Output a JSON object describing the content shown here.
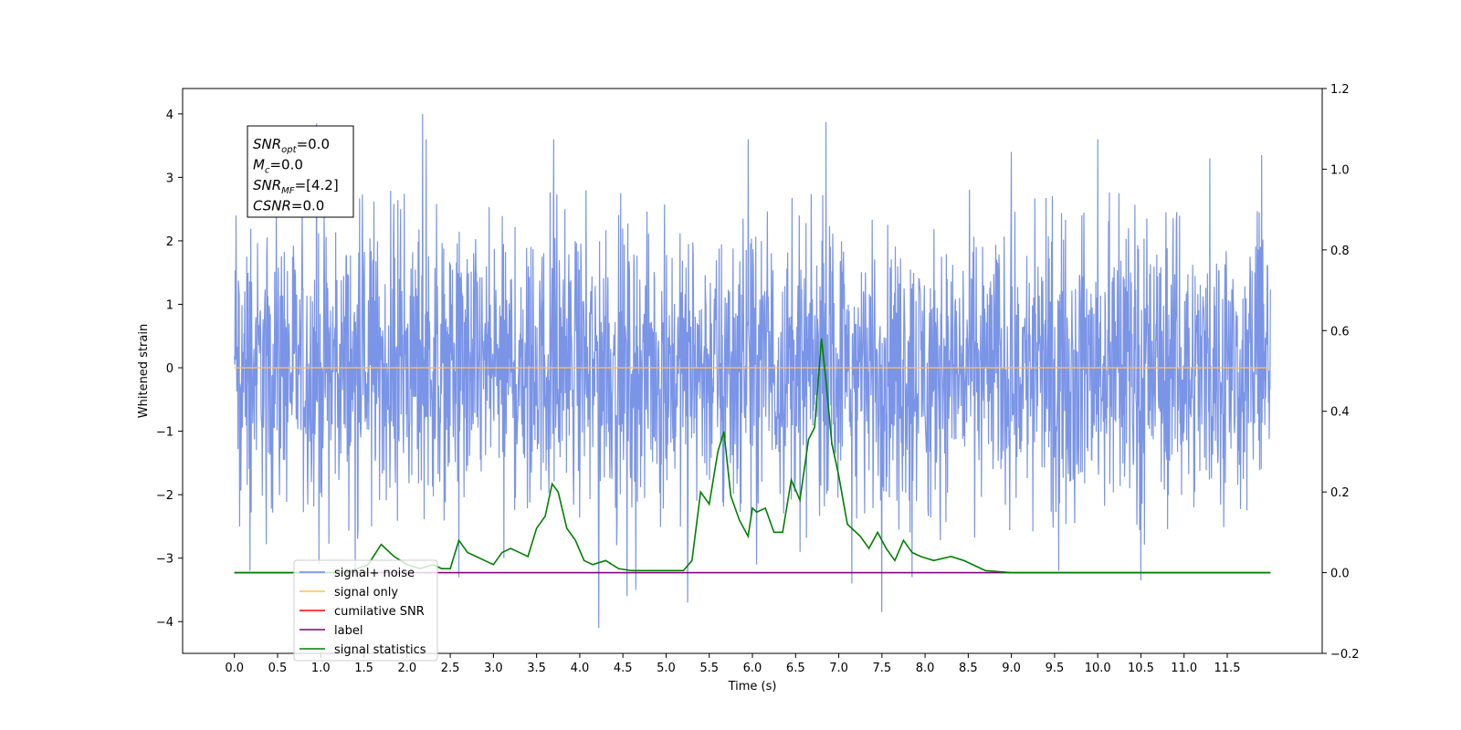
{
  "chart_data": {
    "type": "line",
    "xlabel": "Time (s)",
    "ylabel": "Whitened strain",
    "xlim": [
      -0.6,
      12.6
    ],
    "ylim": [
      -4.5,
      4.4
    ],
    "ylim_right": [
      -0.2,
      1.2
    ],
    "x_ticks": [
      0.0,
      0.5,
      1.0,
      1.5,
      2.0,
      2.5,
      3.0,
      3.5,
      4.0,
      4.5,
      5.0,
      5.5,
      6.0,
      6.5,
      7.0,
      7.5,
      8.0,
      8.5,
      9.0,
      9.5,
      10.0,
      10.5,
      11.0,
      11.5
    ],
    "x_tick_labels": [
      "0.0",
      "0.5",
      "1.0",
      "1.5",
      "2.0",
      "2.5",
      "3.0",
      "3.5",
      "4.0",
      "4.5",
      "5.0",
      "5.5",
      "6.0",
      "6.5",
      "7.0",
      "7.5",
      "8.0",
      "8.5",
      "9.0",
      "9.5",
      "10.0",
      "10.5",
      "11.0",
      "11.5"
    ],
    "y_ticks_left": [
      -4,
      -3,
      -2,
      -1,
      0,
      1,
      2,
      3,
      4
    ],
    "y_tick_labels_left": [
      "−4",
      "−3",
      "−2",
      "−1",
      "0",
      "1",
      "2",
      "3",
      "4"
    ],
    "y_ticks_right": [
      -0.2,
      0.0,
      0.2,
      0.4,
      0.6,
      0.8,
      1.0,
      1.2
    ],
    "y_tick_labels_right": [
      "−0.2",
      "0.0",
      "0.2",
      "0.4",
      "0.6",
      "0.8",
      "1.0",
      "1.2"
    ],
    "grid": false,
    "legend_position": "lower-left",
    "series": [
      {
        "name": "signal+ noise",
        "color": "#6b88e4",
        "axis": "left",
        "x_range": [
          0.0,
          12.0
        ],
        "typical_range": [
          -1.8,
          1.8
        ],
        "peaks": [
          {
            "x": 0.02,
            "y": 2.4
          },
          {
            "x": 0.06,
            "y": -2.5
          },
          {
            "x": 0.18,
            "y": -3.2
          },
          {
            "x": 0.95,
            "y": 3.85
          },
          {
            "x": 0.98,
            "y": -3.1
          },
          {
            "x": 1.4,
            "y": -3.3
          },
          {
            "x": 2.18,
            "y": 4.0
          },
          {
            "x": 2.22,
            "y": 3.6
          },
          {
            "x": 2.6,
            "y": -3.3
          },
          {
            "x": 3.7,
            "y": 3.6
          },
          {
            "x": 3.12,
            "y": -3.0
          },
          {
            "x": 4.22,
            "y": -4.1
          },
          {
            "x": 4.55,
            "y": -3.6
          },
          {
            "x": 4.65,
            "y": -3.5
          },
          {
            "x": 5.25,
            "y": -3.7
          },
          {
            "x": 5.95,
            "y": 3.6
          },
          {
            "x": 6.05,
            "y": -3.1
          },
          {
            "x": 6.55,
            "y": -2.9
          },
          {
            "x": 6.85,
            "y": 3.87
          },
          {
            "x": 7.15,
            "y": -3.4
          },
          {
            "x": 7.5,
            "y": -3.85
          },
          {
            "x": 7.85,
            "y": -3.3
          },
          {
            "x": 9.0,
            "y": 3.4
          },
          {
            "x": 9.55,
            "y": -3.2
          },
          {
            "x": 10.0,
            "y": 3.6
          },
          {
            "x": 10.5,
            "y": -3.35
          },
          {
            "x": 11.3,
            "y": 3.3
          },
          {
            "x": 11.9,
            "y": 3.35
          }
        ]
      },
      {
        "name": "signal only",
        "color": "#ffbd59",
        "axis": "left",
        "x": [
          0.0,
          12.0
        ],
        "y": [
          0.0,
          0.0
        ]
      },
      {
        "name": "cumilative SNR",
        "color": "#ff0000",
        "axis": "right",
        "x": [
          0.0,
          12.0
        ],
        "y": [
          0.0,
          0.0
        ]
      },
      {
        "name": "label",
        "color": "#800080",
        "axis": "right",
        "x": [
          0.0,
          12.0
        ],
        "y": [
          0.0,
          0.0
        ]
      },
      {
        "name": "signal statistics",
        "color": "#008000",
        "axis": "right",
        "x": [
          0.0,
          0.5,
          1.0,
          1.3,
          1.55,
          1.7,
          1.85,
          2.0,
          2.15,
          2.3,
          2.4,
          2.5,
          2.6,
          2.7,
          2.8,
          2.9,
          3.0,
          3.1,
          3.2,
          3.3,
          3.4,
          3.5,
          3.6,
          3.68,
          3.75,
          3.85,
          3.95,
          4.05,
          4.15,
          4.3,
          4.45,
          4.6,
          4.8,
          5.0,
          5.2,
          5.3,
          5.4,
          5.5,
          5.6,
          5.67,
          5.75,
          5.85,
          5.95,
          6.0,
          6.05,
          6.15,
          6.25,
          6.35,
          6.45,
          6.55,
          6.65,
          6.72,
          6.8,
          6.85,
          6.92,
          7.0,
          7.1,
          7.25,
          7.35,
          7.45,
          7.55,
          7.65,
          7.75,
          7.85,
          7.95,
          8.1,
          8.3,
          8.45,
          8.55,
          8.7,
          9.0,
          10.0,
          11.0,
          12.0
        ],
        "y": [
          0.0,
          0.0,
          0.0,
          0.0,
          0.02,
          0.07,
          0.04,
          0.02,
          0.01,
          0.02,
          0.01,
          0.01,
          0.08,
          0.05,
          0.04,
          0.03,
          0.02,
          0.05,
          0.06,
          0.05,
          0.04,
          0.11,
          0.14,
          0.22,
          0.2,
          0.11,
          0.08,
          0.03,
          0.02,
          0.03,
          0.01,
          0.005,
          0.005,
          0.005,
          0.005,
          0.03,
          0.2,
          0.17,
          0.3,
          0.35,
          0.19,
          0.13,
          0.09,
          0.16,
          0.15,
          0.16,
          0.1,
          0.1,
          0.23,
          0.18,
          0.33,
          0.36,
          0.58,
          0.48,
          0.32,
          0.24,
          0.12,
          0.09,
          0.06,
          0.1,
          0.06,
          0.03,
          0.08,
          0.05,
          0.04,
          0.03,
          0.04,
          0.03,
          0.02,
          0.005,
          0.0,
          0.0,
          0.0,
          0.0
        ]
      }
    ],
    "legend_entries": [
      {
        "label": "signal+ noise",
        "color": "#6b88e4"
      },
      {
        "label": "signal only",
        "color": "#ffbd59"
      },
      {
        "label": "cumilative SNR",
        "color": "#ff0000"
      },
      {
        "label": "label",
        "color": "#800080"
      },
      {
        "label": "signal statistics",
        "color": "#008000"
      }
    ],
    "annotation": [
      {
        "main": "SNR",
        "sub": "opt",
        "rest": "=0.0"
      },
      {
        "main": "M",
        "sub": "c",
        "rest": "=0.0"
      },
      {
        "main": "SNR",
        "sub": "MF",
        "rest": "=[4.2]"
      },
      {
        "main": "CSNR",
        "sub": "",
        "rest": "=0.0"
      }
    ]
  }
}
